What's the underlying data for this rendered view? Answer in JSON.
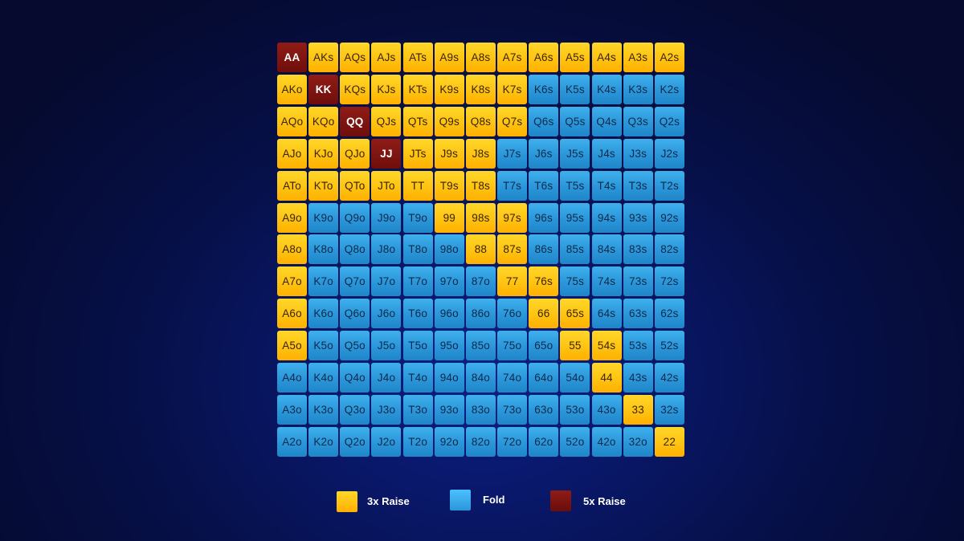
{
  "chart_data": {
    "type": "table",
    "title": "",
    "ranks": [
      "A",
      "K",
      "Q",
      "J",
      "T",
      "9",
      "8",
      "7",
      "6",
      "5",
      "4",
      "3",
      "2"
    ],
    "actions": {
      "R": {
        "label": "3x Raise",
        "color": "#ffc312"
      },
      "F": {
        "label": "Fold",
        "color": "#2a96d9"
      },
      "X": {
        "label": "5x Raise",
        "color": "#7a1210"
      }
    },
    "rows": [
      [
        "AA",
        "AKs",
        "AQs",
        "AJs",
        "ATs",
        "A9s",
        "A8s",
        "A7s",
        "A6s",
        "A5s",
        "A4s",
        "A3s",
        "A2s"
      ],
      [
        "AKo",
        "KK",
        "KQs",
        "KJs",
        "KTs",
        "K9s",
        "K8s",
        "K7s",
        "K6s",
        "K5s",
        "K4s",
        "K3s",
        "K2s"
      ],
      [
        "AQo",
        "KQo",
        "QQ",
        "QJs",
        "QTs",
        "Q9s",
        "Q8s",
        "Q7s",
        "Q6s",
        "Q5s",
        "Q4s",
        "Q3s",
        "Q2s"
      ],
      [
        "AJo",
        "KJo",
        "QJo",
        "JJ",
        "JTs",
        "J9s",
        "J8s",
        "J7s",
        "J6s",
        "J5s",
        "J4s",
        "J3s",
        "J2s"
      ],
      [
        "ATo",
        "KTo",
        "QTo",
        "JTo",
        "TT",
        "T9s",
        "T8s",
        "T7s",
        "T6s",
        "T5s",
        "T4s",
        "T3s",
        "T2s"
      ],
      [
        "A9o",
        "K9o",
        "Q9o",
        "J9o",
        "T9o",
        "99",
        "98s",
        "97s",
        "96s",
        "95s",
        "94s",
        "93s",
        "92s"
      ],
      [
        "A8o",
        "K8o",
        "Q8o",
        "J8o",
        "T8o",
        "98o",
        "88",
        "87s",
        "86s",
        "85s",
        "84s",
        "83s",
        "82s"
      ],
      [
        "A7o",
        "K7o",
        "Q7o",
        "J7o",
        "T7o",
        "97o",
        "87o",
        "77",
        "76s",
        "75s",
        "74s",
        "73s",
        "72s"
      ],
      [
        "A6o",
        "K6o",
        "Q6o",
        "J6o",
        "T6o",
        "96o",
        "86o",
        "76o",
        "66",
        "65s",
        "64s",
        "63s",
        "62s"
      ],
      [
        "A5o",
        "K5o",
        "Q5o",
        "J5o",
        "T5o",
        "95o",
        "85o",
        "75o",
        "65o",
        "55",
        "54s",
        "53s",
        "52s"
      ],
      [
        "A4o",
        "K4o",
        "Q4o",
        "J4o",
        "T4o",
        "94o",
        "84o",
        "74o",
        "64o",
        "54o",
        "44",
        "43s",
        "42s"
      ],
      [
        "A3o",
        "K3o",
        "Q3o",
        "J3o",
        "T3o",
        "93o",
        "83o",
        "73o",
        "63o",
        "53o",
        "43o",
        "33",
        "32s"
      ],
      [
        "A2o",
        "K2o",
        "Q2o",
        "J2o",
        "T2o",
        "92o",
        "82o",
        "72o",
        "62o",
        "52o",
        "42o",
        "32o",
        "22"
      ]
    ],
    "action_grid": [
      "XRRRRRRRRRRRR",
      "RXRRRRRRFFFFF",
      "RRXRRRRRFFFFF",
      "RRRXRRRFFFFFF",
      "RRRRRRRFFFFFF",
      "RFFFFRRRFFFFF",
      "RFFFFFRRFFFFF",
      "RFFFFFFRRFFFF",
      "RFFFFFFFRRFFF",
      "RFFFFFFFFRRFF",
      "FFFFFFFFFFRFF",
      "FFFFFFFFFFFRF",
      "FFFFFFFFFFFFR"
    ]
  },
  "legend": {
    "items": [
      {
        "key": "R",
        "label": "3x Raise"
      },
      {
        "key": "F",
        "label": "Fold"
      },
      {
        "key": "X",
        "label": "5x Raise"
      }
    ]
  }
}
